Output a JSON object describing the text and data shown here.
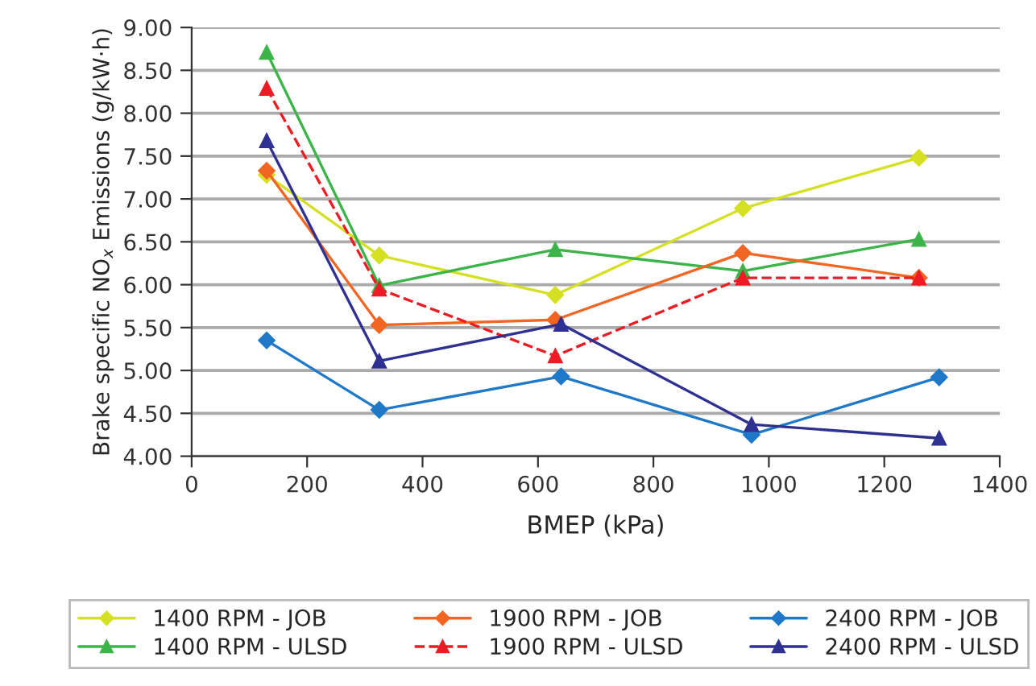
{
  "chart_data": {
    "type": "line",
    "xlabel": "BMEP (kPa)",
    "ylabel": "Brake specific NO$_{x}$ Emissions (g/kW·h)",
    "xlim": [
      0,
      1400
    ],
    "xticks": [
      0,
      200,
      400,
      600,
      800,
      1000,
      1200,
      1400
    ],
    "ylim": [
      4.0,
      9.0
    ],
    "yticks": [
      {
        "value": 4.0,
        "label": "4.00"
      },
      {
        "value": 4.5,
        "label": "4.50"
      },
      {
        "value": 5.0,
        "label": "5.00"
      },
      {
        "value": 5.5,
        "label": "5.50"
      },
      {
        "value": 6.0,
        "label": "6.00"
      },
      {
        "value": 6.5,
        "label": "6.50"
      },
      {
        "value": 7.0,
        "label": "7.00"
      },
      {
        "value": 7.5,
        "label": "7.50"
      },
      {
        "value": 8.0,
        "label": "8.00"
      },
      {
        "value": 8.5,
        "label": "8.50"
      },
      {
        "value": 9.0,
        "label": "9.00"
      }
    ],
    "grid": "y",
    "legend": "bottom",
    "series": [
      {
        "name": "1400 RPM - JOB",
        "color": "#d4e021",
        "marker": "diamond",
        "line_style": "solid",
        "x": [
          130,
          325,
          630,
          955,
          1260
        ],
        "values": [
          7.28,
          6.34,
          5.88,
          6.89,
          7.48
        ]
      },
      {
        "name": "1400 RPM - ULSD",
        "color": "#3cb44a",
        "marker": "triangle",
        "line_style": "solid",
        "x": [
          130,
          325,
          630,
          955,
          1260
        ],
        "values": [
          8.71,
          5.99,
          6.41,
          6.16,
          6.53
        ]
      },
      {
        "name": "1900 RPM - JOB",
        "color": "#f26522",
        "marker": "diamond",
        "line_style": "solid",
        "x": [
          130,
          325,
          630,
          955,
          1260
        ],
        "values": [
          7.33,
          5.53,
          5.59,
          6.37,
          6.08
        ]
      },
      {
        "name": "1900 RPM - ULSD",
        "color": "#ed1c24",
        "marker": "triangle",
        "line_style": "dashed",
        "x": [
          130,
          325,
          630,
          955,
          1260
        ],
        "values": [
          8.29,
          5.95,
          5.17,
          6.08,
          6.08
        ]
      },
      {
        "name": "2400 RPM - JOB",
        "color": "#1f78c8",
        "marker": "diamond",
        "line_style": "solid",
        "x": [
          130,
          325,
          640,
          970,
          1295
        ],
        "values": [
          5.35,
          4.54,
          4.93,
          4.25,
          4.92
        ]
      },
      {
        "name": "2400 RPM - ULSD",
        "color": "#2e3192",
        "marker": "triangle",
        "line_style": "solid",
        "x": [
          130,
          325,
          640,
          970,
          1295
        ],
        "values": [
          7.68,
          5.11,
          5.54,
          4.37,
          4.21
        ]
      }
    ]
  }
}
